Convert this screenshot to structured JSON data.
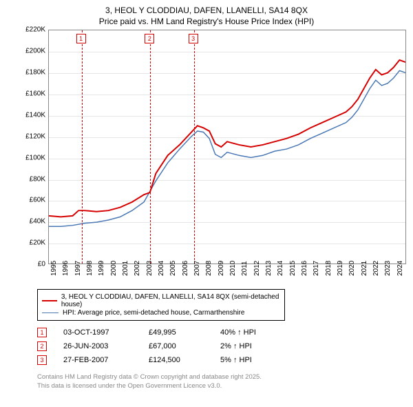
{
  "title_line1": "3, HEOL Y CLODDIAU, DAFEN, LLANELLI, SA14 8QX",
  "title_line2": "Price paid vs. HM Land Registry's House Price Index (HPI)",
  "chart": {
    "type": "line",
    "ylim": [
      0,
      220000
    ],
    "ytick_step": 20000,
    "ylabel_prefix": "£",
    "ylabel_suffix": "K",
    "xlim": [
      1995,
      2025
    ],
    "xticks": [
      1995,
      1996,
      1997,
      1998,
      1999,
      2000,
      2001,
      2002,
      2003,
      2004,
      2005,
      2006,
      2007,
      2008,
      2009,
      2010,
      2011,
      2012,
      2013,
      2014,
      2015,
      2016,
      2017,
      2018,
      2019,
      2020,
      2021,
      2022,
      2023,
      2024
    ],
    "background_color": "#ffffff",
    "grid_color": "#e5e5e5",
    "axis_color": "#888888",
    "series": [
      {
        "name": "3, HEOL Y CLODDIAU, DAFEN, LLANELLI, SA14 8QX (semi-detached house)",
        "color": "#d60000",
        "line_width": 2,
        "data": [
          [
            1995.0,
            45000
          ],
          [
            1996.0,
            44000
          ],
          [
            1997.0,
            45000
          ],
          [
            1997.5,
            50000
          ],
          [
            1998.0,
            50000
          ],
          [
            1999.0,
            49000
          ],
          [
            2000.0,
            50000
          ],
          [
            2001.0,
            53000
          ],
          [
            2002.0,
            58000
          ],
          [
            2003.0,
            65000
          ],
          [
            2003.5,
            67000
          ],
          [
            2004.0,
            85000
          ],
          [
            2005.0,
            102000
          ],
          [
            2006.0,
            112000
          ],
          [
            2007.0,
            124000
          ],
          [
            2007.5,
            130000
          ],
          [
            2008.0,
            128000
          ],
          [
            2008.5,
            125000
          ],
          [
            2009.0,
            113000
          ],
          [
            2009.5,
            110000
          ],
          [
            2010.0,
            115000
          ],
          [
            2011.0,
            112000
          ],
          [
            2012.0,
            110000
          ],
          [
            2013.0,
            112000
          ],
          [
            2014.0,
            115000
          ],
          [
            2015.0,
            118000
          ],
          [
            2016.0,
            122000
          ],
          [
            2017.0,
            128000
          ],
          [
            2018.0,
            133000
          ],
          [
            2019.0,
            138000
          ],
          [
            2020.0,
            143000
          ],
          [
            2020.5,
            148000
          ],
          [
            2021.0,
            155000
          ],
          [
            2021.5,
            165000
          ],
          [
            2022.0,
            175000
          ],
          [
            2022.5,
            183000
          ],
          [
            2023.0,
            178000
          ],
          [
            2023.5,
            180000
          ],
          [
            2024.0,
            185000
          ],
          [
            2024.5,
            192000
          ],
          [
            2025.0,
            190000
          ]
        ]
      },
      {
        "name": "HPI: Average price, semi-detached house, Carmarthenshire",
        "color": "#4a78b5",
        "line_width": 1.5,
        "data": [
          [
            1995.0,
            35000
          ],
          [
            1996.0,
            35000
          ],
          [
            1997.0,
            36000
          ],
          [
            1998.0,
            38000
          ],
          [
            1999.0,
            39000
          ],
          [
            2000.0,
            41000
          ],
          [
            2001.0,
            44000
          ],
          [
            2002.0,
            50000
          ],
          [
            2003.0,
            58000
          ],
          [
            2004.0,
            78000
          ],
          [
            2005.0,
            95000
          ],
          [
            2006.0,
            108000
          ],
          [
            2007.0,
            120000
          ],
          [
            2007.5,
            125000
          ],
          [
            2008.0,
            124000
          ],
          [
            2008.5,
            118000
          ],
          [
            2009.0,
            103000
          ],
          [
            2009.5,
            100000
          ],
          [
            2010.0,
            105000
          ],
          [
            2011.0,
            102000
          ],
          [
            2012.0,
            100000
          ],
          [
            2013.0,
            102000
          ],
          [
            2014.0,
            106000
          ],
          [
            2015.0,
            108000
          ],
          [
            2016.0,
            112000
          ],
          [
            2017.0,
            118000
          ],
          [
            2018.0,
            123000
          ],
          [
            2019.0,
            128000
          ],
          [
            2020.0,
            133000
          ],
          [
            2020.5,
            138000
          ],
          [
            2021.0,
            145000
          ],
          [
            2021.5,
            155000
          ],
          [
            2022.0,
            165000
          ],
          [
            2022.5,
            173000
          ],
          [
            2023.0,
            168000
          ],
          [
            2023.5,
            170000
          ],
          [
            2024.0,
            175000
          ],
          [
            2024.5,
            182000
          ],
          [
            2025.0,
            180000
          ]
        ]
      }
    ],
    "markers": [
      {
        "n": "1",
        "x": 1997.75,
        "color": "#d60000"
      },
      {
        "n": "2",
        "x": 2003.5,
        "color": "#d60000"
      },
      {
        "n": "3",
        "x": 2007.15,
        "color": "#d60000"
      }
    ]
  },
  "legend": {
    "border_color": "#000000",
    "items": [
      {
        "color": "#d60000",
        "width": 2,
        "label": "3, HEOL Y CLODDIAU, DAFEN, LLANELLI, SA14 8QX (semi-detached house)"
      },
      {
        "color": "#4a78b5",
        "width": 1.5,
        "label": "HPI: Average price, semi-detached house, Carmarthenshire"
      }
    ]
  },
  "transactions": {
    "rows": [
      {
        "n": "1",
        "color": "#d60000",
        "date": "03-OCT-1997",
        "price": "£49,995",
        "pct": "40% ↑ HPI"
      },
      {
        "n": "2",
        "color": "#d60000",
        "date": "26-JUN-2003",
        "price": "£67,000",
        "pct": "2% ↑ HPI"
      },
      {
        "n": "3",
        "color": "#d60000",
        "date": "27-FEB-2007",
        "price": "£124,500",
        "pct": "5% ↑ HPI"
      }
    ]
  },
  "attribution_line1": "Contains HM Land Registry data © Crown copyright and database right 2025.",
  "attribution_line2": "This data is licensed under the Open Government Licence v3.0."
}
